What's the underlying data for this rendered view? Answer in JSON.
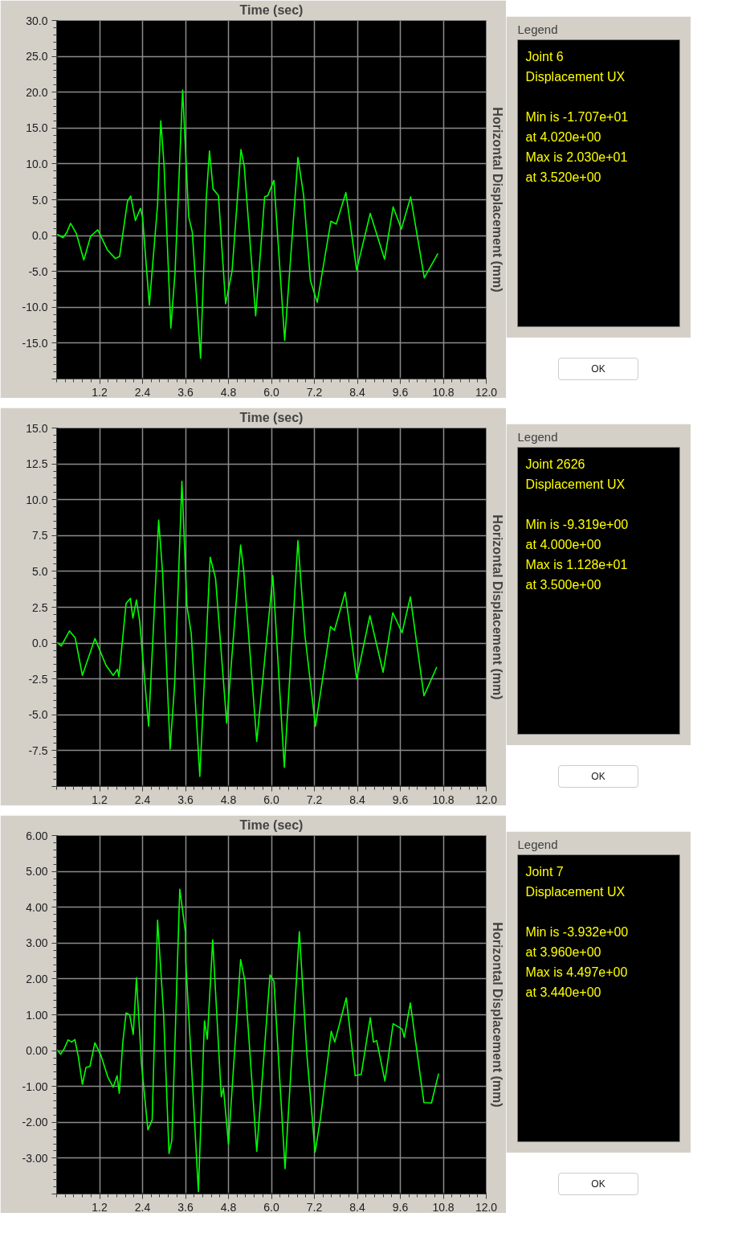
{
  "chart_data": [
    {
      "type": "line",
      "xlabel": "Time (sec)",
      "ylabel": "Horizontal Displacement (mm)",
      "grid": true,
      "x": [
        0.02,
        0.18,
        0.28,
        0.39,
        0.55,
        0.76,
        0.95,
        1.15,
        1.42,
        1.64,
        1.76,
        1.98,
        2.07,
        2.2,
        2.34,
        2.4,
        2.59,
        2.82,
        2.91,
        3.0,
        3.19,
        3.31,
        3.52,
        3.69,
        3.79,
        4.02,
        4.18,
        4.27,
        4.37,
        4.52,
        4.72,
        4.9,
        5.15,
        5.24,
        5.56,
        5.81,
        5.9,
        6.07,
        6.37,
        6.74,
        6.9,
        7.09,
        7.28,
        7.66,
        7.81,
        8.08,
        8.38,
        8.76,
        9.16,
        9.4,
        9.63,
        9.89,
        10.27,
        10.65
      ],
      "series": [
        {
          "color": "#00ff00",
          "values": [
            0.2,
            -0.3,
            0.4,
            1.7,
            0.3,
            -3.4,
            -0.1,
            0.8,
            -2.0,
            -3.2,
            -2.9,
            4.8,
            5.5,
            2.1,
            3.8,
            2.6,
            -9.7,
            4.3,
            16.0,
            9.9,
            -12.9,
            -5.0,
            20.3,
            2.6,
            0.5,
            -17.1,
            5.2,
            11.8,
            6.5,
            5.6,
            -9.5,
            -5.0,
            12.0,
            9.7,
            -11.2,
            5.4,
            5.6,
            7.7,
            -14.6,
            10.9,
            5.6,
            -6.3,
            -9.3,
            2.0,
            1.6,
            6.0,
            -4.8,
            3.1,
            -3.3,
            4.0,
            0.9,
            5.4,
            -5.9,
            -2.5
          ]
        }
      ],
      "xlim": [
        0,
        12
      ],
      "xticks": [
        {
          "value": 1.2,
          "label": "1.2"
        },
        {
          "value": 2.4,
          "label": "2.4"
        },
        {
          "value": 3.6,
          "label": "3.6"
        },
        {
          "value": 4.8,
          "label": "4.8"
        },
        {
          "value": 6.0,
          "label": "6.0"
        },
        {
          "value": 7.2,
          "label": "7.2"
        },
        {
          "value": 8.4,
          "label": "8.4"
        },
        {
          "value": 9.6,
          "label": "9.6"
        },
        {
          "value": 10.8,
          "label": "10.8"
        },
        {
          "value": 12.0,
          "label": "12.0"
        }
      ],
      "ylim": [
        -20,
        30
      ],
      "yticks": [
        {
          "value": -20,
          "label": null
        },
        {
          "value": -15,
          "label": "-15.0"
        },
        {
          "value": -10,
          "label": "-10.0"
        },
        {
          "value": -5,
          "label": "-5.0"
        },
        {
          "value": 0,
          "label": "0.0"
        },
        {
          "value": 5,
          "label": "5.0"
        },
        {
          "value": 10,
          "label": "10.0"
        },
        {
          "value": 15,
          "label": "15.0"
        },
        {
          "value": 20,
          "label": "20.0"
        },
        {
          "value": 25,
          "label": "25.0"
        },
        {
          "value": 30,
          "label": "30.0"
        }
      ],
      "annotations": [
        "Legend",
        "Joint 6",
        "Displacement UX",
        "Min is -1.707e+01",
        "at 4.020e+00",
        "Max is 2.030e+01",
        "at 3.520e+00",
        "OK"
      ]
    },
    {
      "type": "line",
      "xlabel": "Time (sec)",
      "ylabel": "Horizontal Displacement (mm)",
      "grid": true,
      "x": [
        0.02,
        0.13,
        0.36,
        0.52,
        0.72,
        1.07,
        1.38,
        1.58,
        1.7,
        1.74,
        1.94,
        2.06,
        2.13,
        2.23,
        2.32,
        2.57,
        2.85,
        2.96,
        3.17,
        3.3,
        3.5,
        3.64,
        3.76,
        4.0,
        4.29,
        4.44,
        4.75,
        5.14,
        5.23,
        5.59,
        6.04,
        6.36,
        6.74,
        6.93,
        7.23,
        7.65,
        7.76,
        8.06,
        8.38,
        8.75,
        9.12,
        9.39,
        9.65,
        9.88,
        10.26,
        10.62
      ],
      "series": [
        {
          "color": "#00ff00",
          "values": [
            0.04,
            -0.2,
            0.85,
            0.36,
            -2.25,
            0.32,
            -1.55,
            -2.25,
            -1.83,
            -2.34,
            2.76,
            3.12,
            1.74,
            3.01,
            1.53,
            -5.8,
            8.58,
            4.93,
            -7.39,
            -2.72,
            11.28,
            2.6,
            0.68,
            -9.3,
            5.99,
            4.5,
            -5.58,
            6.84,
            4.93,
            -6.86,
            4.71,
            -8.66,
            7.15,
            0.68,
            -5.8,
            1.15,
            0.89,
            3.55,
            -2.5,
            1.91,
            -2.04,
            2.12,
            0.72,
            3.23,
            -3.67,
            -1.66
          ]
        }
      ],
      "xlim": [
        0,
        12
      ],
      "xticks": [
        {
          "value": 1.2,
          "label": "1.2"
        },
        {
          "value": 2.4,
          "label": "2.4"
        },
        {
          "value": 3.6,
          "label": "3.6"
        },
        {
          "value": 4.8,
          "label": "4.8"
        },
        {
          "value": 6.0,
          "label": "6.0"
        },
        {
          "value": 7.2,
          "label": "7.2"
        },
        {
          "value": 8.4,
          "label": "8.4"
        },
        {
          "value": 9.6,
          "label": "9.6"
        },
        {
          "value": 10.8,
          "label": "10.8"
        },
        {
          "value": 12.0,
          "label": "12.0"
        }
      ],
      "ylim": [
        -10,
        15
      ],
      "yticks": [
        {
          "value": -10,
          "label": null
        },
        {
          "value": -7.5,
          "label": "-7.5"
        },
        {
          "value": -5,
          "label": "-5.0"
        },
        {
          "value": -2.5,
          "label": "-2.5"
        },
        {
          "value": 0,
          "label": "0.0"
        },
        {
          "value": 2.5,
          "label": "2.5"
        },
        {
          "value": 5,
          "label": "5.0"
        },
        {
          "value": 7.5,
          "label": "7.5"
        },
        {
          "value": 10,
          "label": "10.0"
        },
        {
          "value": 12.5,
          "label": "12.5"
        },
        {
          "value": 15,
          "label": "15.0"
        }
      ],
      "annotations": [
        "Legend",
        "Joint 2626",
        "Displacement UX",
        "Min is -9.319e+00",
        "at 4.000e+00",
        "Max is 1.128e+01",
        "at 3.500e+00",
        "OK"
      ]
    },
    {
      "type": "line",
      "xlabel": "Time (sec)",
      "ylabel": "Horizontal Displacement (mm)",
      "grid": true,
      "x": [
        0.02,
        0.11,
        0.21,
        0.32,
        0.42,
        0.51,
        0.61,
        0.72,
        0.82,
        0.93,
        1.07,
        1.24,
        1.43,
        1.58,
        1.69,
        1.75,
        1.85,
        1.94,
        2.04,
        2.14,
        2.23,
        2.37,
        2.55,
        2.67,
        2.82,
        2.99,
        3.14,
        3.22,
        3.44,
        3.6,
        3.61,
        3.96,
        4.13,
        4.21,
        4.36,
        4.6,
        4.66,
        4.8,
        5.14,
        5.26,
        5.59,
        5.96,
        6.07,
        6.38,
        6.78,
        6.99,
        7.22,
        7.37,
        7.67,
        7.77,
        8.09,
        8.34,
        8.51,
        8.76,
        8.85,
        8.94,
        9.17,
        9.4,
        9.65,
        9.71,
        9.88,
        10.26,
        10.47,
        10.67
      ],
      "series": [
        {
          "color": "#00ff00",
          "values": [
            0.02,
            -0.1,
            0.05,
            0.3,
            0.24,
            0.31,
            -0.19,
            -0.94,
            -0.47,
            -0.44,
            0.22,
            -0.14,
            -0.74,
            -1.02,
            -0.7,
            -1.19,
            0.24,
            1.05,
            1.0,
            0.45,
            2.03,
            -0.36,
            -2.21,
            -1.93,
            3.64,
            1.0,
            -2.87,
            -2.49,
            4.5,
            3.3,
            2.45,
            -3.93,
            0.83,
            0.32,
            3.09,
            -1.29,
            -1.04,
            -2.61,
            2.54,
            1.94,
            -2.81,
            2.11,
            1.94,
            -3.29,
            3.32,
            -0.1,
            -2.83,
            -1.89,
            0.54,
            0.24,
            1.47,
            -0.7,
            -0.66,
            0.92,
            0.24,
            0.28,
            -0.85,
            0.75,
            0.6,
            0.37,
            1.33,
            -1.45,
            -1.46,
            -0.64
          ]
        }
      ],
      "xlim": [
        0,
        12
      ],
      "xticks": [
        {
          "value": 1.2,
          "label": "1.2"
        },
        {
          "value": 2.4,
          "label": "2.4"
        },
        {
          "value": 3.6,
          "label": "3.6"
        },
        {
          "value": 4.8,
          "label": "4.8"
        },
        {
          "value": 6.0,
          "label": "6.0"
        },
        {
          "value": 7.2,
          "label": "7.2"
        },
        {
          "value": 8.4,
          "label": "8.4"
        },
        {
          "value": 9.6,
          "label": "9.6"
        },
        {
          "value": 10.8,
          "label": "10.8"
        },
        {
          "value": 12.0,
          "label": "12.0"
        }
      ],
      "ylim": [
        -4,
        6
      ],
      "yticks": [
        {
          "value": -4,
          "label": null
        },
        {
          "value": -3,
          "label": "-3.00"
        },
        {
          "value": -2,
          "label": "-2.00"
        },
        {
          "value": -1,
          "label": "-1.00"
        },
        {
          "value": 0,
          "label": "0.00"
        },
        {
          "value": 1,
          "label": "1.00"
        },
        {
          "value": 2,
          "label": "2.00"
        },
        {
          "value": 3,
          "label": "3.00"
        },
        {
          "value": 4,
          "label": "4.00"
        },
        {
          "value": 5,
          "label": "5.00"
        },
        {
          "value": 6,
          "label": "6.00"
        }
      ],
      "annotations": [
        "Legend",
        "Joint 7",
        "Displacement UX",
        "Min is -3.932e+00",
        "at 3.960e+00",
        "Max is 4.497e+00",
        "at 3.440e+00",
        "OK"
      ]
    }
  ]
}
